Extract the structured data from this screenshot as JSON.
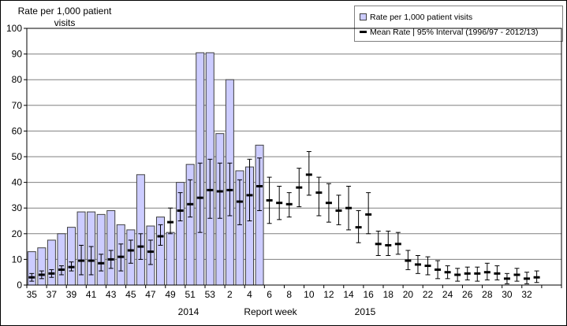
{
  "chart_data": {
    "type": "bar+errorbar",
    "axis_title_line1": "Rate per 1,000  patient",
    "axis_title_line2": "visits",
    "xlabel": "Report week",
    "year_left": "2014",
    "year_right": "2015",
    "ylim": [
      0,
      100
    ],
    "ytick_step": 10,
    "grid": "horizontal",
    "legend_position": "top-right",
    "legend": [
      "Rate per 1,000 patient visits",
      "Mean Rate | 95% Interval (1996/97 - 2012/13)"
    ],
    "categories": [
      "35",
      "36",
      "37",
      "38",
      "39",
      "40",
      "41",
      "42",
      "43",
      "44",
      "45",
      "46",
      "47",
      "48",
      "49",
      "50",
      "51",
      "52",
      "53",
      "1",
      "2",
      "3",
      "4",
      "5",
      "6",
      "7",
      "8",
      "9",
      "10",
      "11",
      "12",
      "13",
      "14",
      "15",
      "16",
      "17",
      "18",
      "19",
      "20",
      "21",
      "22",
      "23",
      "24",
      "25",
      "26",
      "27",
      "28",
      "29",
      "30",
      "31",
      "32",
      "33"
    ],
    "xtick_labels_shown_every": 2,
    "bar_values": [
      13,
      14.5,
      17.5,
      20,
      22.5,
      28.5,
      28.5,
      27.5,
      29,
      23.5,
      21.5,
      43,
      23,
      26.5,
      20.5,
      40,
      47,
      90.5,
      90.5,
      59,
      80,
      44.5,
      46,
      54.5,
      null,
      null,
      null,
      null,
      null,
      null,
      null,
      null,
      null,
      null,
      null,
      null,
      null,
      null,
      null,
      null,
      null,
      null,
      null,
      null,
      null,
      null,
      null,
      null,
      null,
      null,
      null,
      null
    ],
    "mean": [
      3,
      4,
      4.5,
      6,
      7,
      9.5,
      9.5,
      8.5,
      10,
      11,
      13.5,
      15,
      13,
      19,
      24.5,
      29,
      31.5,
      34,
      37,
      36.5,
      37,
      32.5,
      35,
      38.5,
      33,
      32,
      31.5,
      38,
      43,
      36,
      32,
      29,
      30,
      22.5,
      27.5,
      16,
      15.5,
      16,
      9.5,
      8,
      7.5,
      6,
      5,
      4,
      4.5,
      4.5,
      5,
      4.5,
      2.5,
      4,
      2.5,
      3
    ],
    "ci_low": [
      1.5,
      2.5,
      3,
      4,
      5.5,
      4,
      4,
      5.5,
      6.5,
      5.5,
      8.5,
      10,
      8,
      15.5,
      20,
      25,
      26.5,
      20.5,
      26,
      26,
      27,
      23.5,
      25,
      29,
      24,
      25.5,
      26.5,
      30.5,
      35,
      27,
      24.5,
      23.5,
      21.5,
      16.5,
      20,
      11.5,
      11.5,
      12,
      6,
      4.5,
      4,
      2.5,
      2.5,
      1.5,
      2,
      1.5,
      2,
      2,
      0.5,
      1.5,
      0.5,
      1
    ],
    "ci_high": [
      4.5,
      5.5,
      6,
      7.5,
      9,
      15.5,
      15,
      12,
      13.5,
      16,
      17.5,
      20,
      17.5,
      23.5,
      30,
      36,
      41,
      47.5,
      49,
      47.5,
      47.5,
      41,
      49,
      49.5,
      42,
      38.5,
      36,
      45.5,
      52,
      42,
      39.5,
      35,
      38.5,
      29,
      36,
      21,
      21,
      20.5,
      13.5,
      11.5,
      11,
      9.5,
      7.5,
      6.5,
      7,
      7,
      8.5,
      7.5,
      4.5,
      6.5,
      5,
      5.5
    ],
    "colors": {
      "bar_fill": "#CCCCFF",
      "bar_stroke": "#404040",
      "errorbar": "#000000",
      "gridline": "#808080",
      "frame": "#000000",
      "text": "#000000"
    }
  }
}
